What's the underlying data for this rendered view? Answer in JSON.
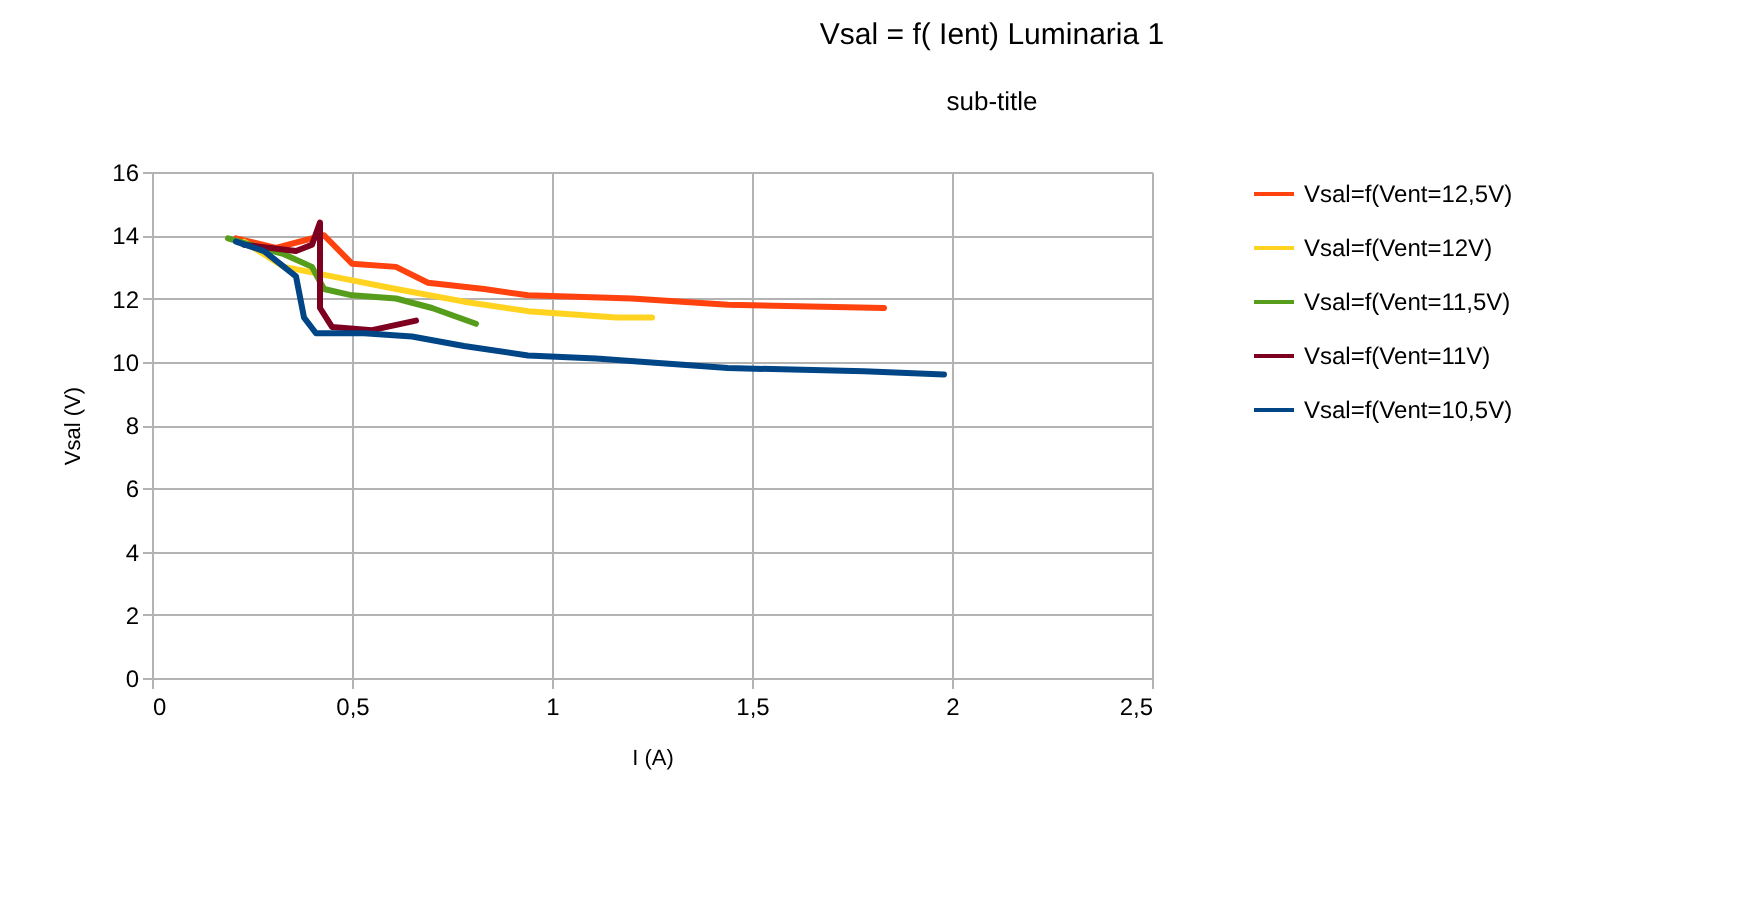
{
  "chart_data": {
    "type": "line",
    "title": "Vsal = f( Ient) Luminaria 1",
    "subtitle": "sub-title",
    "xlabel": "I (A)",
    "ylabel": "Vsal (V)",
    "xlim": [
      0,
      2.5
    ],
    "xticks": [
      0,
      {
        "value": 0.5,
        "label": "0,5"
      },
      1,
      {
        "value": 1.5,
        "label": "1,5"
      },
      2,
      {
        "value": 2.5,
        "label": "2,5"
      }
    ],
    "ylim": [
      0,
      16
    ],
    "yticks": [
      0,
      2,
      4,
      6,
      8,
      10,
      12,
      14,
      16
    ],
    "grid": true,
    "legend": "right",
    "marker": "none",
    "line_style": "solid",
    "series": [
      {
        "name": "Vsal=f(Vent=12,5V)",
        "color": "#ff420e",
        "x": [
          0.21,
          0.31,
          0.43,
          0.5,
          0.61,
          0.69,
          0.83,
          0.94,
          1.2,
          1.44,
          1.83
        ],
        "values": [
          13.9,
          13.6,
          14,
          13.1,
          13,
          12.5,
          12.3,
          12.1,
          12,
          11.8,
          11.7
        ]
      },
      {
        "name": "Vsal=f(Vent=12V)",
        "color": "#ffd320",
        "x": [
          0.23,
          0.33,
          0.45,
          0.61,
          0.78,
          0.94,
          1.16,
          1.25
        ],
        "values": [
          13.8,
          13,
          12.7,
          12.3,
          11.9,
          11.6,
          11.4,
          11.4
        ]
      },
      {
        "name": "Vsal=f(Vent=11,5V)",
        "color": "#579d1c",
        "x": [
          0.19,
          0.33,
          0.4,
          0.43,
          0.5,
          0.61,
          0.7,
          0.81
        ],
        "values": [
          13.9,
          13.4,
          13,
          12.3,
          12.1,
          12,
          11.7,
          11.2
        ]
      },
      {
        "name": "Vsal=f(Vent=11V)",
        "color": "#7e0021",
        "x": [
          0.23,
          0.36,
          0.4,
          0.42,
          0.42,
          0.45,
          0.55,
          0.66
        ],
        "values": [
          13.7,
          13.5,
          13.7,
          14.4,
          11.7,
          11.1,
          11,
          11.3
        ]
      },
      {
        "name": "Vsal=f(Vent=10,5V)",
        "color": "#004586",
        "x": [
          0.21,
          0.28,
          0.36,
          0.38,
          0.41,
          0.53,
          0.65,
          0.78,
          0.94,
          1.11,
          1.44,
          1.78,
          1.98
        ],
        "values": [
          13.8,
          13.5,
          12.7,
          11.4,
          10.9,
          10.9,
          10.8,
          10.5,
          10.2,
          10.1,
          9.8,
          9.7,
          9.6
        ]
      }
    ]
  }
}
